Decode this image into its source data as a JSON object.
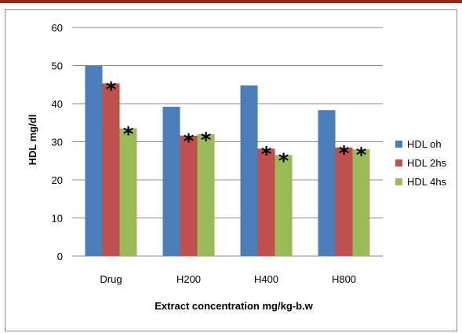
{
  "chart_data": {
    "type": "bar",
    "title": "",
    "xlabel": "Extract concentration mg/kg-b.w",
    "ylabel": "HDL mg/dl",
    "ylim": [
      0,
      60
    ],
    "yticks": [
      "0",
      "10",
      "20",
      "30",
      "40",
      "50",
      "60"
    ],
    "categories": [
      "Drug",
      "H200",
      "H400",
      "H800"
    ],
    "grid": true,
    "legend_position": "right",
    "series": [
      {
        "name": "HDL oh",
        "color": "#4a7ebb",
        "values": [
          50,
          39.2,
          44.8,
          38.3
        ],
        "significance": [
          "",
          "",
          "",
          ""
        ]
      },
      {
        "name": "HDL 2hs",
        "color": "#c0504d",
        "values": [
          45.3,
          31.6,
          28.2,
          28.5
        ],
        "significance": [
          "*",
          "*",
          "*",
          "*"
        ]
      },
      {
        "name": "HDL 4hs",
        "color": "#9bbb59",
        "values": [
          33.5,
          32,
          26.5,
          28
        ],
        "significance": [
          "*",
          "*",
          "*",
          "*"
        ]
      }
    ]
  }
}
